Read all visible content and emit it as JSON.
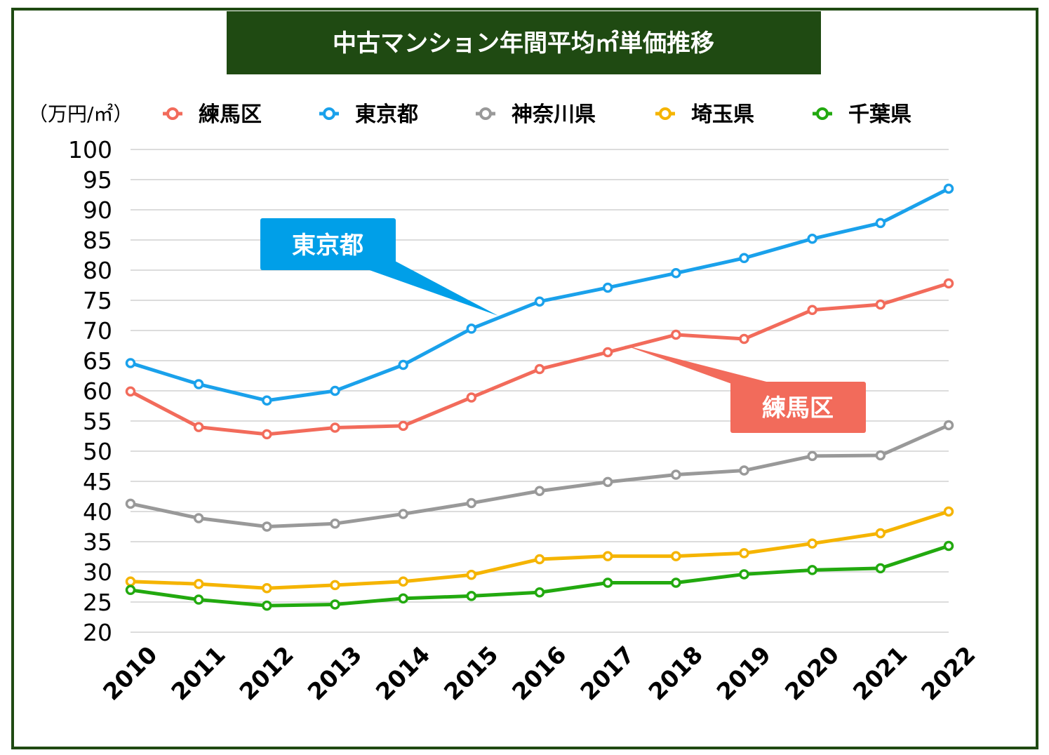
{
  "chart_data": {
    "type": "line",
    "title": "中古マンション年間平均㎡単価推移",
    "unit_label": "（万円/㎡）",
    "ylim": [
      20,
      100
    ],
    "ytick_step": 5,
    "grid": "horizontal",
    "legend_position": "top",
    "categories": [
      "2010",
      "2011",
      "2012",
      "2013",
      "2014",
      "2015",
      "2016",
      "2017",
      "2018",
      "2019",
      "2020",
      "2021",
      "2022"
    ],
    "series": [
      {
        "name": "練馬区",
        "color": "#f26b5b",
        "values": [
          59.9,
          54.0,
          52.8,
          53.9,
          54.2,
          58.9,
          63.6,
          66.4,
          69.3,
          68.6,
          73.4,
          74.3,
          77.8
        ]
      },
      {
        "name": "東京都",
        "color": "#1aa1eb",
        "values": [
          64.6,
          61.1,
          58.4,
          60.0,
          64.3,
          70.3,
          74.8,
          77.1,
          79.5,
          82.0,
          85.2,
          87.8,
          93.5
        ]
      },
      {
        "name": "神奈川県",
        "color": "#999999",
        "values": [
          41.3,
          38.9,
          37.5,
          38.0,
          39.6,
          41.4,
          43.4,
          44.9,
          46.1,
          46.8,
          49.2,
          49.3,
          54.3
        ]
      },
      {
        "name": "埼玉県",
        "color": "#f5b400",
        "values": [
          28.4,
          28.0,
          27.3,
          27.8,
          28.4,
          29.5,
          32.1,
          32.6,
          32.6,
          33.1,
          34.7,
          36.4,
          40.0
        ]
      },
      {
        "name": "千葉県",
        "color": "#22a90f",
        "values": [
          27.0,
          25.4,
          24.4,
          24.6,
          25.6,
          26.0,
          26.6,
          28.2,
          28.2,
          29.6,
          30.3,
          30.6,
          34.3
        ]
      }
    ],
    "annotations": [
      {
        "text": "東京都",
        "color": "#009fe8",
        "series": "東京都"
      },
      {
        "text": "練馬区",
        "color": "#f26b5b",
        "series": "練馬区"
      }
    ]
  },
  "colors": {
    "frame": "#1f4a12",
    "title_bg": "#1f4a12",
    "grid": "#c8c8c8"
  }
}
